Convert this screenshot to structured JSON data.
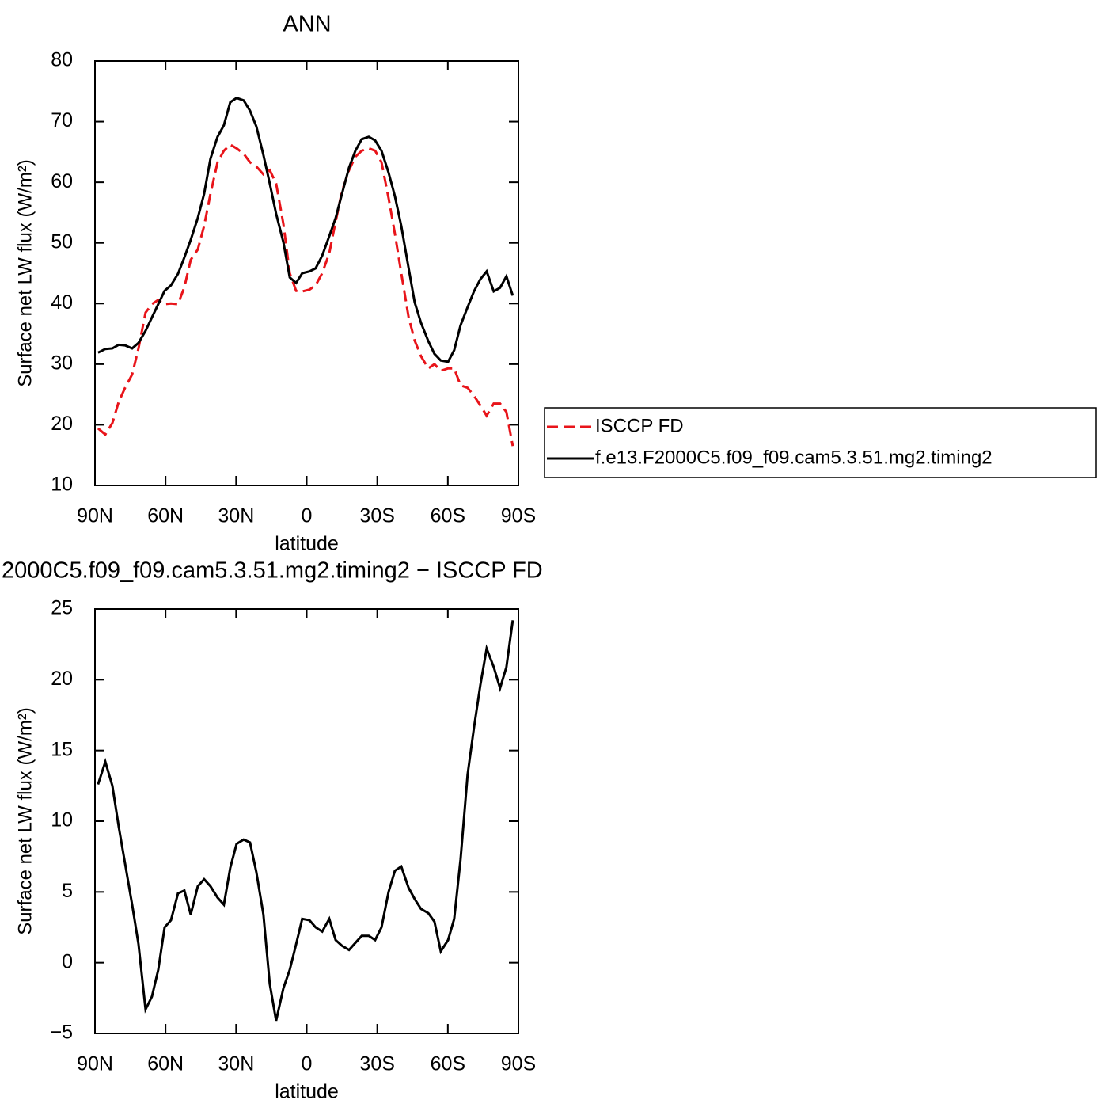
{
  "chart_data": [
    {
      "type": "line",
      "title": "ANN",
      "xlabel": "latitude",
      "ylabel": "Surface net LW flux (W/m²)",
      "x": [
        88.7,
        85.6,
        82.6,
        79.9,
        77.2,
        74.2,
        71.5,
        68.5,
        65.8,
        63.1,
        60.4,
        57.7,
        54.7,
        52.0,
        49.3,
        46.3,
        43.6,
        40.9,
        37.9,
        35.2,
        32.5,
        29.8,
        26.8,
        24.1,
        21.4,
        18.4,
        15.7,
        13.0,
        9.9,
        7.2,
        4.5,
        1.9,
        -1.2,
        -3.8,
        -6.6,
        -9.6,
        -12.3,
        -15.0,
        -18.0,
        -20.7,
        -23.4,
        -26.4,
        -29.1,
        -31.8,
        -34.8,
        -37.5,
        -40.2,
        -43.3,
        -45.9,
        -48.6,
        -51.7,
        -54.3,
        -57.0,
        -60.1,
        -62.7,
        -65.4,
        -68.4,
        -71.1,
        -73.8,
        -76.5,
        -79.5,
        -82.2,
        -84.9,
        -87.6
      ],
      "series": [
        {
          "name": "ISCCP FD",
          "color": "#e8141a",
          "dash": "dashed",
          "values": [
            19.4,
            18.4,
            20.3,
            23.8,
            26.1,
            28.3,
            32.6,
            38.5,
            39.9,
            40.6,
            39.9,
            40.0,
            39.9,
            42.7,
            47.2,
            48.9,
            52.8,
            58.1,
            63.3,
            65.2,
            66.2,
            65.6,
            64.7,
            63.3,
            62.6,
            61.3,
            62.0,
            59.8,
            53.1,
            45.0,
            42.1,
            42.0,
            42.3,
            43.0,
            45.0,
            48.3,
            53.5,
            58.5,
            62.0,
            64.2,
            65.2,
            65.6,
            65.2,
            63.3,
            57.4,
            51.5,
            45.0,
            37.8,
            33.9,
            31.3,
            29.3,
            30.0,
            28.9,
            29.3,
            29.3,
            26.5,
            26.1,
            24.8,
            23.2,
            21.5,
            23.5,
            23.5,
            22.1,
            16.5
          ]
        },
        {
          "name": "f.e13.F2000C5.f09_f09.cam5.3.51.mg2.timing2",
          "color": "#000000",
          "dash": "solid",
          "values": [
            31.9,
            32.5,
            32.6,
            33.2,
            33.1,
            32.6,
            33.5,
            35.5,
            37.7,
            39.9,
            42.1,
            43.0,
            44.9,
            47.6,
            50.5,
            54.1,
            58.1,
            63.9,
            67.5,
            69.4,
            73.2,
            73.9,
            73.5,
            71.8,
            69.2,
            64.5,
            59.8,
            54.8,
            50.1,
            44.3,
            43.4,
            45.0,
            45.3,
            45.8,
            47.9,
            51.1,
            54.1,
            58.1,
            62.4,
            65.2,
            67.1,
            67.5,
            66.9,
            65.2,
            61.6,
            57.7,
            52.8,
            45.9,
            40.2,
            36.8,
            33.8,
            31.7,
            30.6,
            30.4,
            32.3,
            36.4,
            39.4,
            42.0,
            44.0,
            45.3,
            42.0,
            42.6,
            44.5,
            41.3
          ]
        }
      ],
      "xlim": [
        90,
        -90
      ],
      "xticks": [
        {
          "value": 90,
          "label": "90N"
        },
        {
          "value": 60,
          "label": "60N"
        },
        {
          "value": 30,
          "label": "30N"
        },
        0,
        {
          "value": -30,
          "label": "30S"
        },
        {
          "value": -60,
          "label": "60S"
        },
        {
          "value": -90,
          "label": "90S"
        }
      ],
      "ylim": [
        10,
        80
      ],
      "yticks": [
        10,
        20,
        30,
        40,
        50,
        60,
        70,
        80
      ],
      "legend": "right"
    },
    {
      "type": "line",
      "title": "2000C5.f09_f09.cam5.3.51.mg2.timing2 − ISCCP FD",
      "xlabel": "latitude",
      "ylabel": "Surface net LW flux (W/m²)",
      "x": [
        88.7,
        85.6,
        82.6,
        79.9,
        77.2,
        74.2,
        71.5,
        68.5,
        65.8,
        63.1,
        60.4,
        57.7,
        54.7,
        52.0,
        49.3,
        46.3,
        43.6,
        40.9,
        37.9,
        35.2,
        32.5,
        29.8,
        26.8,
        24.1,
        21.4,
        18.4,
        15.7,
        13.0,
        9.9,
        7.2,
        4.5,
        1.9,
        -1.2,
        -3.8,
        -6.6,
        -9.6,
        -12.3,
        -15.0,
        -18.0,
        -20.7,
        -23.4,
        -26.4,
        -29.1,
        -31.8,
        -34.8,
        -37.5,
        -40.2,
        -43.3,
        -45.9,
        -48.6,
        -51.7,
        -54.3,
        -57.0,
        -60.1,
        -62.7,
        -65.4,
        -68.4,
        -71.1,
        -73.8,
        -76.5,
        -79.5,
        -82.2,
        -84.9,
        -87.6
      ],
      "values": [
        12.6,
        14.2,
        12.5,
        9.6,
        7.0,
        4.1,
        1.3,
        -3.3,
        -2.4,
        -0.5,
        2.5,
        3.0,
        4.9,
        5.1,
        3.4,
        5.4,
        5.9,
        5.4,
        4.6,
        4.1,
        6.7,
        8.4,
        8.7,
        8.5,
        6.4,
        3.4,
        -1.5,
        -4.1,
        -1.8,
        -0.5,
        1.3,
        3.1,
        3.0,
        2.5,
        2.2,
        3.1,
        1.6,
        1.2,
        0.9,
        1.4,
        1.9,
        1.9,
        1.6,
        2.5,
        5.0,
        6.5,
        6.8,
        5.3,
        4.5,
        3.8,
        3.5,
        2.9,
        0.8,
        1.6,
        3.1,
        7.3,
        13.3,
        16.6,
        19.6,
        22.2,
        20.9,
        19.4,
        20.9,
        24.2
      ],
      "color": "#000000",
      "xlim": [
        90,
        -90
      ],
      "xticks": [
        {
          "value": 90,
          "label": "90N"
        },
        {
          "value": 60,
          "label": "60N"
        },
        {
          "value": 30,
          "label": "30N"
        },
        0,
        {
          "value": -30,
          "label": "30S"
        },
        {
          "value": -60,
          "label": "60S"
        },
        {
          "value": -90,
          "label": "90S"
        }
      ],
      "ylim": [
        -5,
        25
      ],
      "yticks": [
        {
          "value": -5,
          "label": "−5"
        },
        0,
        5,
        10,
        15,
        20,
        25
      ]
    }
  ]
}
